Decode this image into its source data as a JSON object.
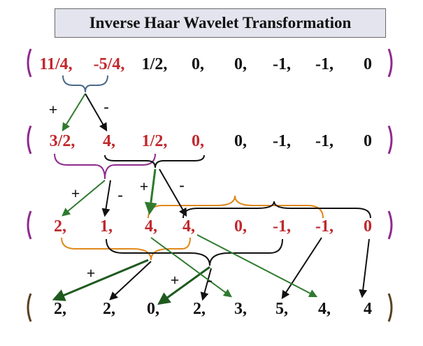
{
  "title": "Inverse Haar Wavelet Transformation",
  "colors": {
    "red": "#c0282d",
    "black": "#111111",
    "purple": "#8e2a8e",
    "steel": "#4a6a88",
    "green": "#2f7a2f",
    "darkgreen": "#1f5a1f",
    "orange": "#e0891b",
    "brown": "#5a4022"
  },
  "rows": [
    {
      "id": "row-1",
      "bracket": "purple",
      "items": [
        {
          "text": "11/4,",
          "color": "red"
        },
        {
          "text": "-5/4,",
          "color": "red"
        },
        {
          "text": "1/2,",
          "color": "black"
        },
        {
          "text": "0,",
          "color": "black"
        },
        {
          "text": "0,",
          "color": "black"
        },
        {
          "text": "-1,",
          "color": "black"
        },
        {
          "text": "-1,",
          "color": "black"
        },
        {
          "text": "0",
          "color": "black"
        }
      ]
    },
    {
      "id": "row-2",
      "bracket": "purple",
      "items": [
        {
          "text": "3/2,",
          "color": "red"
        },
        {
          "text": "4,",
          "color": "red"
        },
        {
          "text": "1/2,",
          "color": "red"
        },
        {
          "text": "0,",
          "color": "red"
        },
        {
          "text": "0,",
          "color": "black"
        },
        {
          "text": "-1,",
          "color": "black"
        },
        {
          "text": "-1,",
          "color": "black"
        },
        {
          "text": "0",
          "color": "black"
        }
      ]
    },
    {
      "id": "row-3",
      "bracket": "purple",
      "items": [
        {
          "text": "2,",
          "color": "red"
        },
        {
          "text": "1,",
          "color": "red"
        },
        {
          "text": "4,",
          "color": "red"
        },
        {
          "text": "4,",
          "color": "red"
        },
        {
          "text": "0,",
          "color": "red"
        },
        {
          "text": "-1,",
          "color": "red"
        },
        {
          "text": "-1,",
          "color": "red"
        },
        {
          "text": "0",
          "color": "red"
        }
      ]
    },
    {
      "id": "row-4",
      "bracket": "brown",
      "items": [
        {
          "text": "2,",
          "color": "black"
        },
        {
          "text": "2,",
          "color": "black"
        },
        {
          "text": "0,",
          "color": "black"
        },
        {
          "text": "2,",
          "color": "black"
        },
        {
          "text": "3,",
          "color": "black"
        },
        {
          "text": "5,",
          "color": "black"
        },
        {
          "text": "4,",
          "color": "black"
        },
        {
          "text": "4",
          "color": "black"
        }
      ]
    }
  ],
  "operators": [
    {
      "text": "+",
      "color": "black"
    },
    {
      "text": "-",
      "color": "black"
    },
    {
      "text": "+",
      "color": "black"
    },
    {
      "text": "-",
      "color": "black"
    },
    {
      "text": "+",
      "color": "black"
    },
    {
      "text": "-",
      "color": "black"
    },
    {
      "text": "+",
      "color": "black"
    },
    {
      "text": "+",
      "color": "black"
    },
    {
      "text": "-",
      "color": "black"
    }
  ]
}
